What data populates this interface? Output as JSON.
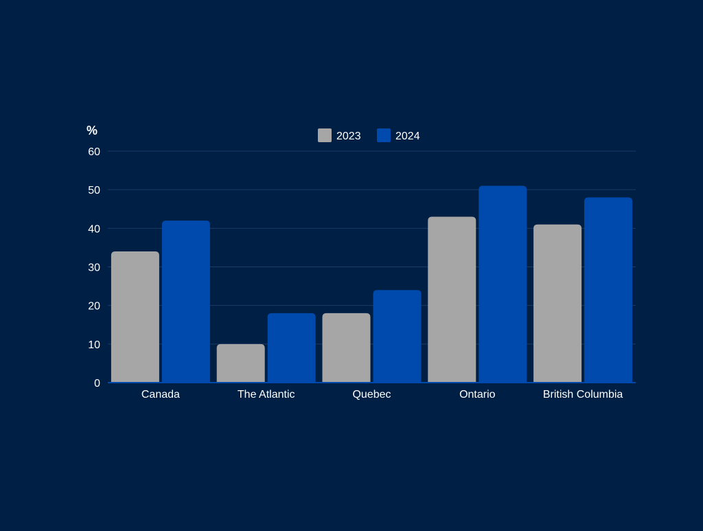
{
  "background_color": "#001f45",
  "chart_data": {
    "type": "bar",
    "title": "",
    "xlabel": "",
    "ylabel": "%",
    "categories": [
      "Canada",
      "The Atlantic",
      "Quebec",
      "Ontario",
      "British Columbia"
    ],
    "series": [
      {
        "name": "2023",
        "values": [
          34,
          10,
          18,
          43,
          41
        ],
        "color": "#a6a6a6"
      },
      {
        "name": "2024",
        "values": [
          42,
          18,
          24,
          51,
          48
        ],
        "color": "#004aad"
      }
    ],
    "ylim": [
      0,
      60
    ],
    "yticks": [
      0,
      10,
      20,
      30,
      40,
      50,
      60
    ],
    "grid": true,
    "legend_position": "top-center",
    "text_color": "#ffffff",
    "grid_color": "#1e3a66"
  }
}
